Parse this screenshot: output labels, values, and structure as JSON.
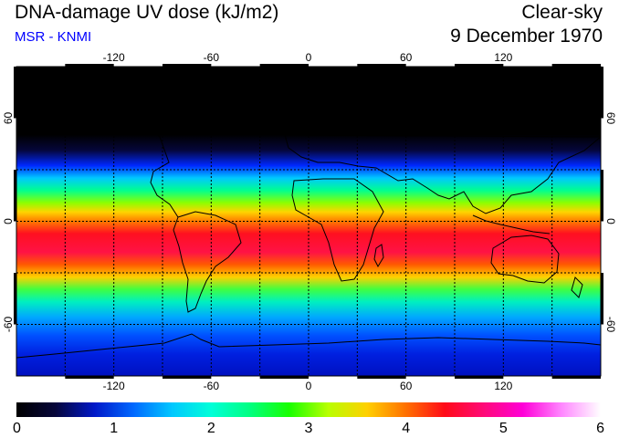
{
  "header": {
    "title": "DNA-damage UV dose (kJ/m2)",
    "subtitle": "MSR - KNMI",
    "sky_condition": "Clear-sky",
    "date": "9 December 1970"
  },
  "colors": {
    "subtitle": "#0000ff",
    "grid": "#000000",
    "frame": "#000000"
  },
  "map": {
    "projection": "equirectangular",
    "lon_range": [
      -180,
      180
    ],
    "lat_range": [
      -90,
      90
    ],
    "grid_lon_step": 30,
    "grid_lat_step": 30,
    "lon_ticks": [
      {
        "value": -120,
        "label": "-120"
      },
      {
        "value": -60,
        "label": "-60"
      },
      {
        "value": 0,
        "label": "0"
      },
      {
        "value": 60,
        "label": "60"
      },
      {
        "value": 120,
        "label": "120"
      }
    ],
    "lat_ticks": [
      {
        "value": 60,
        "label": "60"
      },
      {
        "value": 0,
        "label": "0"
      },
      {
        "value": -60,
        "label": "-60"
      }
    ]
  },
  "colorbar": {
    "min": 0,
    "max": 6,
    "tick_labels": [
      "0",
      "1",
      "2",
      "3",
      "4",
      "5",
      "6"
    ],
    "stops": [
      {
        "value": 0.0,
        "color": "#000000"
      },
      {
        "value": 0.4,
        "color": "#06063a"
      },
      {
        "value": 0.8,
        "color": "#0018c8"
      },
      {
        "value": 1.2,
        "color": "#0068ff"
      },
      {
        "value": 1.6,
        "color": "#00c8ff"
      },
      {
        "value": 2.0,
        "color": "#00ffd8"
      },
      {
        "value": 2.4,
        "color": "#00ff80"
      },
      {
        "value": 2.8,
        "color": "#18ff00"
      },
      {
        "value": 3.2,
        "color": "#b8ff00"
      },
      {
        "value": 3.6,
        "color": "#ffd000"
      },
      {
        "value": 4.0,
        "color": "#ff7000"
      },
      {
        "value": 4.4,
        "color": "#ff0a18"
      },
      {
        "value": 4.8,
        "color": "#ff0a78"
      },
      {
        "value": 5.2,
        "color": "#ff00d8"
      },
      {
        "value": 5.6,
        "color": "#ff88ff"
      },
      {
        "value": 6.0,
        "color": "#ffffff"
      }
    ]
  }
}
